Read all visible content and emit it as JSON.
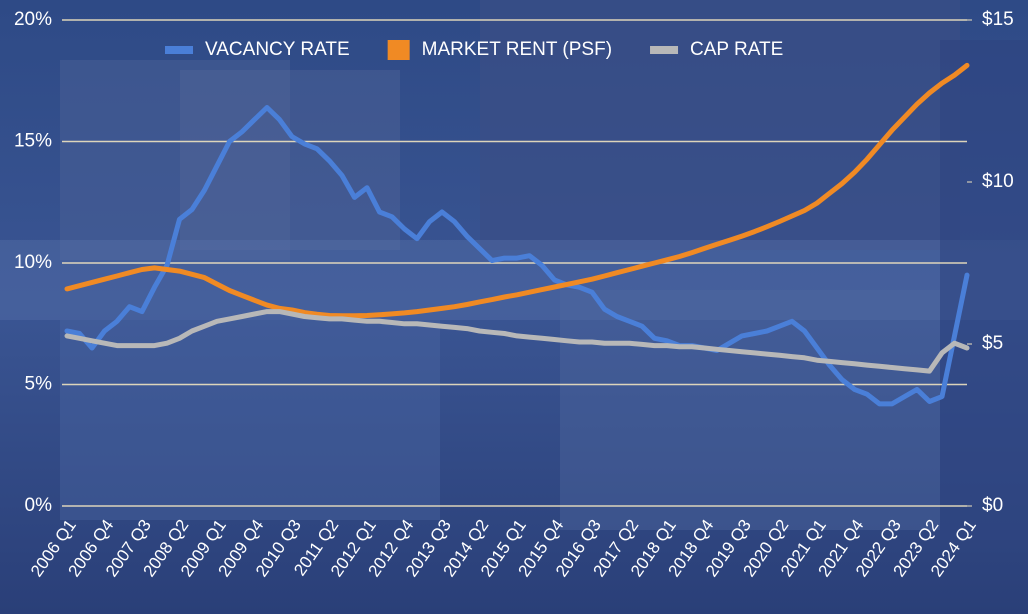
{
  "chart_data": {
    "type": "line",
    "categories": [
      "2006 Q1",
      null,
      null,
      "2006 Q4",
      null,
      null,
      "2007 Q3",
      null,
      null,
      "2008 Q2",
      null,
      null,
      "2009 Q1",
      null,
      null,
      "2009 Q4",
      null,
      null,
      "2010 Q3",
      null,
      null,
      "2011 Q2",
      null,
      null,
      "2012 Q1",
      null,
      null,
      "2012 Q4",
      null,
      null,
      "2013 Q3",
      null,
      null,
      "2014 Q2",
      null,
      null,
      "2015 Q1",
      null,
      null,
      "2015 Q4",
      null,
      null,
      "2016 Q3",
      null,
      null,
      "2017 Q2",
      null,
      null,
      "2018 Q1",
      null,
      null,
      "2018 Q4",
      null,
      null,
      "2019 Q3",
      null,
      null,
      "2020 Q2",
      null,
      null,
      "2021 Q1",
      null,
      null,
      "2021 Q4",
      null,
      null,
      "2022 Q3",
      null,
      null,
      "2023 Q2",
      null,
      null,
      "2024 Q1"
    ],
    "series": [
      {
        "name": "VACANCY RATE",
        "color": "#4a7fd8",
        "values": [
          7.2,
          7.1,
          6.5,
          7.2,
          7.6,
          8.2,
          8.0,
          9.0,
          9.9,
          11.8,
          12.2,
          13.0,
          14.0,
          15.0,
          15.4,
          15.9,
          16.4,
          15.9,
          15.2,
          14.9,
          14.7,
          14.2,
          13.6,
          12.7,
          13.1,
          12.1,
          11.9,
          11.4,
          11.0,
          11.7,
          12.1,
          11.7,
          11.1,
          10.6,
          10.1,
          10.2,
          10.2,
          10.3,
          9.9,
          9.3,
          9.1,
          9.0,
          8.8,
          8.1,
          7.8,
          7.6,
          7.4,
          6.9,
          6.8,
          6.6,
          6.6,
          6.5,
          6.4,
          6.7,
          7.0,
          7.1,
          7.2,
          7.4,
          7.6,
          7.2,
          6.5,
          5.8,
          5.2,
          4.8,
          4.6,
          4.2,
          4.2,
          4.5,
          4.8,
          4.3,
          4.5,
          7.0,
          9.5
        ]
      },
      {
        "name": "MARKET RENT (PSF)",
        "color": "#f08a24",
        "axis": "y2",
        "values": [
          6.7,
          6.8,
          6.9,
          7.0,
          7.1,
          7.2,
          7.3,
          7.35,
          7.3,
          7.25,
          7.15,
          7.05,
          6.85,
          6.65,
          6.5,
          6.35,
          6.2,
          6.1,
          6.05,
          5.97,
          5.92,
          5.88,
          5.87,
          5.87,
          5.88,
          5.9,
          5.93,
          5.96,
          6.0,
          6.05,
          6.1,
          6.15,
          6.22,
          6.3,
          6.37,
          6.45,
          6.52,
          6.6,
          6.68,
          6.76,
          6.84,
          6.92,
          7.0,
          7.1,
          7.2,
          7.3,
          7.4,
          7.5,
          7.6,
          7.7,
          7.82,
          7.95,
          8.08,
          8.2,
          8.33,
          8.47,
          8.62,
          8.78,
          8.95,
          9.12,
          9.35,
          9.65,
          9.95,
          10.3,
          10.7,
          11.15,
          11.6,
          12.0,
          12.4,
          12.75,
          13.05,
          13.3,
          13.6
        ]
      },
      {
        "name": "CAP RATE",
        "color": "#b8b8b8",
        "values": [
          7.0,
          6.9,
          6.8,
          6.7,
          6.6,
          6.6,
          6.6,
          6.6,
          6.7,
          6.9,
          7.2,
          7.4,
          7.6,
          7.7,
          7.8,
          7.9,
          8.0,
          8.0,
          7.9,
          7.8,
          7.75,
          7.7,
          7.7,
          7.65,
          7.6,
          7.6,
          7.55,
          7.5,
          7.5,
          7.45,
          7.4,
          7.35,
          7.3,
          7.2,
          7.15,
          7.1,
          7.0,
          6.95,
          6.9,
          6.85,
          6.8,
          6.75,
          6.75,
          6.7,
          6.7,
          6.7,
          6.65,
          6.6,
          6.6,
          6.55,
          6.55,
          6.5,
          6.45,
          6.4,
          6.35,
          6.3,
          6.25,
          6.2,
          6.15,
          6.1,
          6.0,
          5.95,
          5.9,
          5.85,
          5.8,
          5.75,
          5.7,
          5.65,
          5.6,
          5.55,
          6.3,
          6.7,
          6.5
        ]
      }
    ],
    "ylim": [
      0,
      20
    ],
    "yticks": [
      {
        "value": 0,
        "label": "0%"
      },
      {
        "value": 5,
        "label": "5%"
      },
      {
        "value": 10,
        "label": "10%"
      },
      {
        "value": 15,
        "label": "15%"
      },
      {
        "value": 20,
        "label": "20%"
      }
    ],
    "y2lim": [
      0,
      15
    ],
    "y2ticks": [
      {
        "value": 0,
        "label": "$0"
      },
      {
        "value": 5,
        "label": "$5"
      },
      {
        "value": 10,
        "label": "$10"
      },
      {
        "value": 15,
        "label": "$15"
      }
    ],
    "grid": true,
    "legend": "top"
  }
}
